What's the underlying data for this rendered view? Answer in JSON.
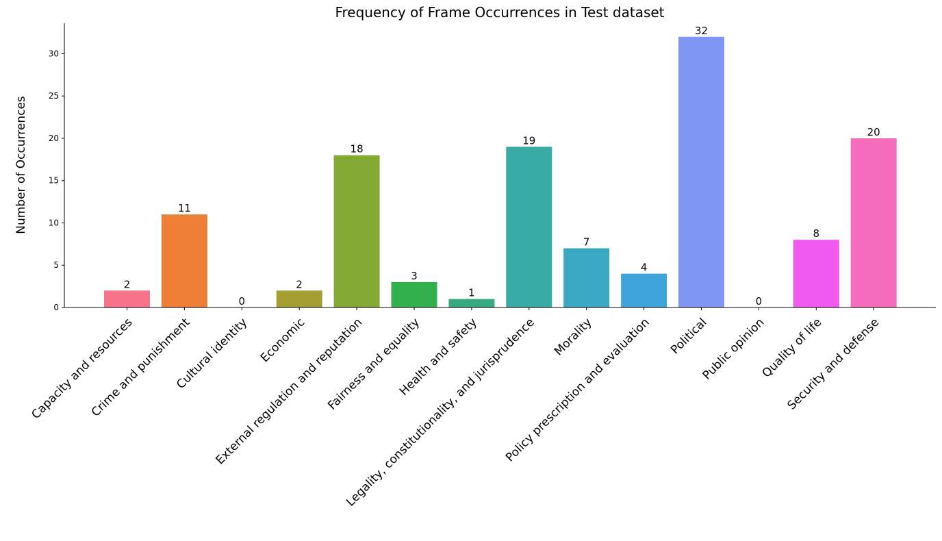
{
  "chart_data": {
    "type": "bar",
    "title": "Frequency of Frame Occurrences in Test dataset",
    "xlabel": "",
    "ylabel": "Number of Occurrences",
    "ylim": [
      0,
      33.6
    ],
    "yticks": [
      0,
      5,
      10,
      15,
      20,
      25,
      30
    ],
    "grid": false,
    "categories": [
      "Capacity and resources",
      "Crime and punishment",
      "Cultural identity",
      "Economic",
      "External regulation and reputation",
      "Fairness and equality",
      "Health and safety",
      "Legality, constitutionality, and jurisprudence",
      "Morality",
      "Policy prescription and evaluation",
      "Political",
      "Public opinion",
      "Quality of life",
      "Security and defense"
    ],
    "values": [
      2,
      11,
      0,
      2,
      18,
      3,
      1,
      19,
      7,
      4,
      32,
      0,
      8,
      20
    ],
    "colors": [
      "#f6738a",
      "#ee7f36",
      "#c8a23c",
      "#a59e33",
      "#84a933",
      "#31b14c",
      "#35ab7f",
      "#37ab a4",
      "#3aa8c0",
      "#3da5dc",
      "#8096f4",
      "#c386f5",
      "#f15aee",
      "#f66cbd"
    ]
  }
}
